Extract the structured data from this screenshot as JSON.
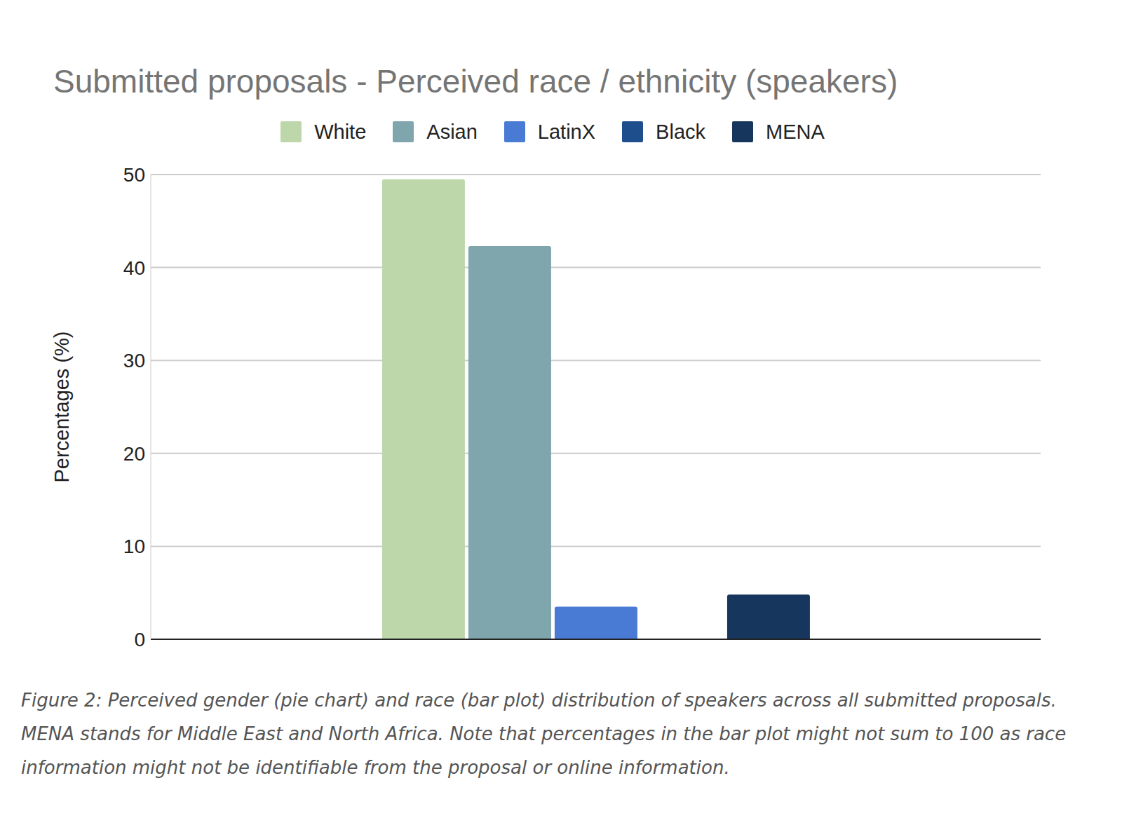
{
  "chart_data": {
    "type": "bar",
    "title": "Submitted proposals - Perceived race / ethnicity (speakers)",
    "y_label": "Percentages (%)",
    "caption": "Figure 2: Perceived gender (pie chart) and race (bar plot) distribution of speakers across all submitted proposals. MENA stands for Middle East and North Africa. Note that percentages in the bar plot might not sum to 100 as race information might not be identifiable from the proposal or online information.",
    "categories": [
      null
    ],
    "series": [
      {
        "name": "White",
        "color": "#bdd7ab",
        "values": [
          49.5
        ]
      },
      {
        "name": "Asian",
        "color": "#7fa5ad",
        "values": [
          42.3
        ]
      },
      {
        "name": "LatinX",
        "color": "#4a7bd4",
        "values": [
          3.5
        ]
      },
      {
        "name": "Black",
        "color": "#1f4e8c",
        "values": [
          0
        ]
      },
      {
        "name": "MENA",
        "color": "#17365d",
        "values": [
          4.8
        ]
      }
    ],
    "ylim": [
      0,
      50
    ],
    "yticks": [
      0,
      10,
      20,
      30,
      40,
      50
    ],
    "grid": true,
    "legend": "top"
  }
}
